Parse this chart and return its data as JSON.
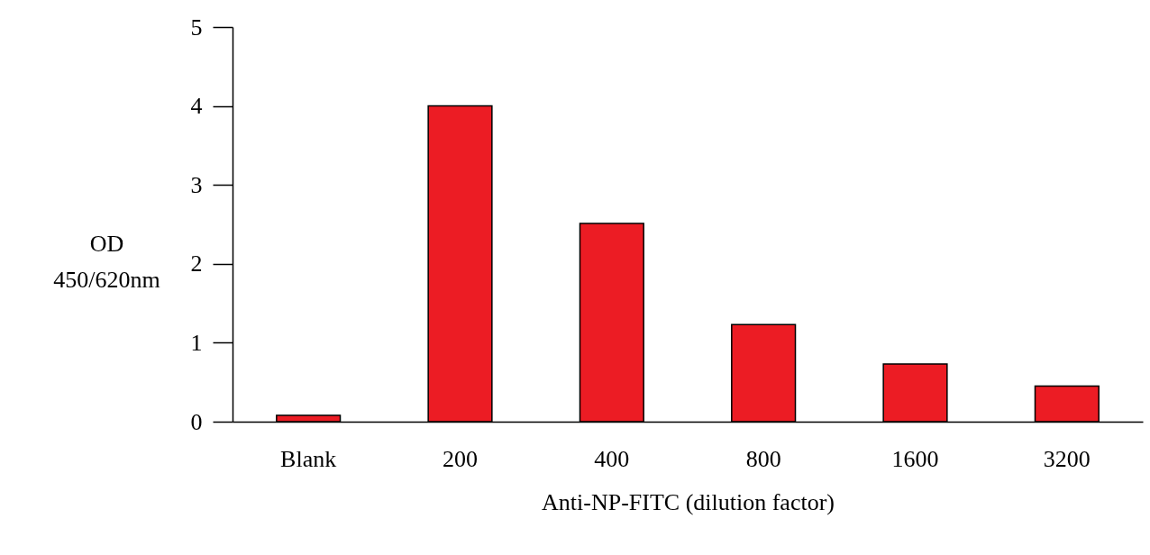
{
  "chart_data": {
    "type": "bar",
    "xlabel": "Anti-NP-FITC (dilution factor)",
    "ylabel": "OD\n450/620nm",
    "categories": [
      "Blank",
      "200",
      "400",
      "800",
      "1600",
      "3200"
    ],
    "values": [
      0.08,
      4.0,
      2.51,
      1.23,
      0.73,
      0.45
    ],
    "color": "#ec1c24",
    "ylim": [
      0,
      5
    ],
    "yticks": [
      0,
      1,
      2,
      3,
      4,
      5
    ],
    "grid": false
  }
}
